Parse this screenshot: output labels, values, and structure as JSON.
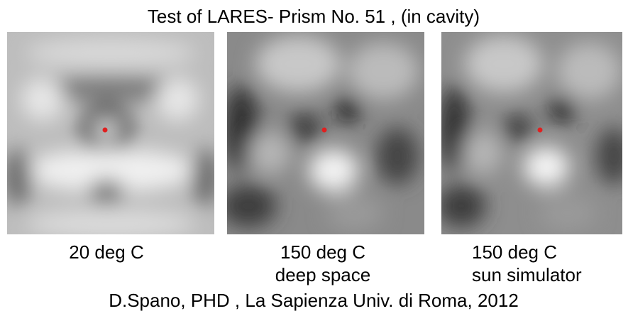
{
  "title": "Test of LARES- Prism No. 51 , (in cavity)",
  "panels": [
    {
      "caption": [
        "20 deg C"
      ]
    },
    {
      "caption": [
        "150 deg C",
        "deep space"
      ]
    },
    {
      "caption": [
        "150 deg C",
        "sun simulator"
      ]
    }
  ],
  "footer": "D.Spano, PHD , La Sapienza Univ. di Roma, 2012"
}
